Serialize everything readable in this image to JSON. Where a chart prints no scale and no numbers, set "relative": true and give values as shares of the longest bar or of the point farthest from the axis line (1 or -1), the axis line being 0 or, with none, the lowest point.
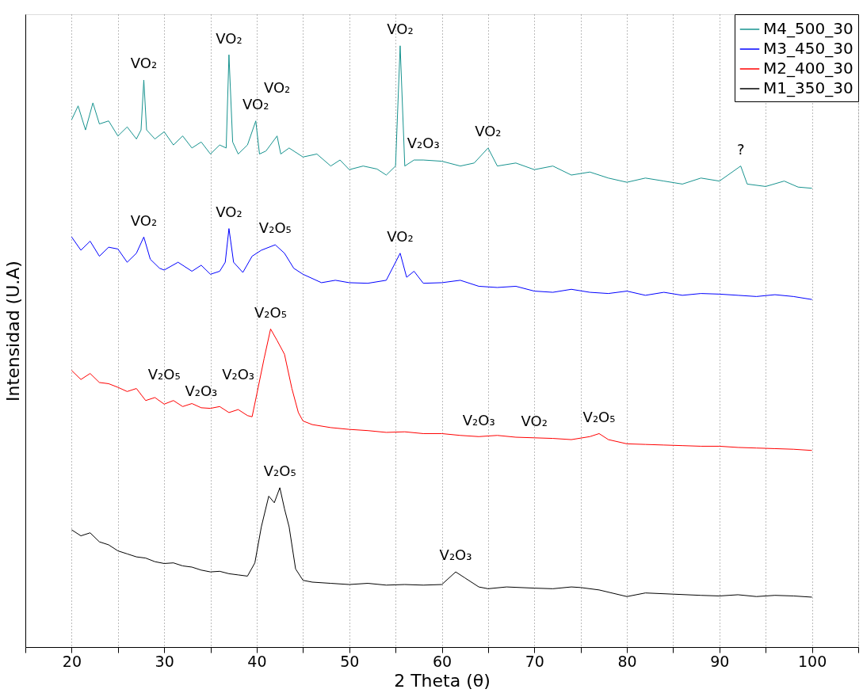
{
  "chart_data": {
    "type": "line",
    "relative": true,
    "xlabel": "2 Theta (θ)",
    "ylabel": "Intensidad (U.A)",
    "xlim": [
      15,
      105
    ],
    "xticks": [
      {
        "value": 15,
        "label": null
      },
      20,
      {
        "value": 25,
        "label": null
      },
      30,
      {
        "value": 35,
        "label": null
      },
      40,
      {
        "value": 45,
        "label": null
      },
      50,
      {
        "value": 55,
        "label": null
      },
      60,
      {
        "value": 65,
        "label": null
      },
      70,
      {
        "value": 75,
        "label": null
      },
      80,
      {
        "value": 85,
        "label": null
      },
      90,
      {
        "value": 95,
        "label": null
      },
      100,
      {
        "value": 105,
        "label": null
      }
    ],
    "tick_labels": "x",
    "grid": "x",
    "legend": "top right",
    "marker": "none",
    "line_style": "solid",
    "series": [
      {
        "name": "M4_500_30",
        "color": "#17938f",
        "x": [
          20,
          20.7,
          21.5,
          22.3,
          23,
          24,
          25,
          26,
          27,
          27.5,
          27.8,
          28.1,
          29,
          30,
          31,
          32,
          33,
          34,
          35,
          36,
          36.7,
          37.0,
          37.4,
          38,
          39,
          39.9,
          40.3,
          41,
          42.2,
          42.6,
          43.5,
          45,
          46.5,
          48,
          49,
          50,
          51.5,
          53,
          54,
          55,
          55.5,
          56,
          57,
          58,
          60,
          62,
          63.5,
          65,
          66,
          68,
          70,
          72,
          74,
          76,
          78,
          80,
          82,
          84,
          86,
          88,
          90,
          92.3,
          93,
          95,
          97,
          98.5,
          100
        ],
        "values": [
          0.877,
          0.9,
          0.86,
          0.905,
          0.87,
          0.875,
          0.85,
          0.865,
          0.845,
          0.86,
          0.943,
          0.86,
          0.845,
          0.857,
          0.835,
          0.85,
          0.83,
          0.84,
          0.82,
          0.835,
          0.83,
          0.985,
          0.84,
          0.82,
          0.835,
          0.875,
          0.82,
          0.825,
          0.85,
          0.82,
          0.83,
          0.815,
          0.82,
          0.8,
          0.81,
          0.794,
          0.8,
          0.795,
          0.785,
          0.8,
          1.0,
          0.8,
          0.81,
          0.81,
          0.808,
          0.8,
          0.805,
          0.83,
          0.8,
          0.805,
          0.794,
          0.8,
          0.785,
          0.79,
          0.78,
          0.773,
          0.78,
          0.775,
          0.77,
          0.78,
          0.775,
          0.8,
          0.77,
          0.766,
          0.775,
          0.765,
          0.763
        ]
      },
      {
        "name": "M3_450_30",
        "color": "#0000ff",
        "x": [
          20,
          21,
          22,
          23,
          24,
          25,
          26,
          27,
          27.8,
          28.5,
          29.5,
          30,
          31.5,
          33,
          34,
          35,
          36,
          36.6,
          37,
          37.5,
          38.5,
          39.5,
          40.5,
          42,
          43,
          44,
          45,
          47,
          48.5,
          50,
          52,
          54,
          55.5,
          56.2,
          57,
          58,
          60,
          62,
          64,
          66,
          68,
          70,
          72,
          74,
          76,
          78,
          80,
          82,
          84,
          86,
          88,
          90,
          92,
          94,
          96,
          98,
          100
        ],
        "values": [
          0.682,
          0.66,
          0.675,
          0.65,
          0.665,
          0.662,
          0.64,
          0.655,
          0.682,
          0.645,
          0.63,
          0.627,
          0.64,
          0.625,
          0.635,
          0.62,
          0.625,
          0.64,
          0.696,
          0.64,
          0.623,
          0.65,
          0.66,
          0.669,
          0.655,
          0.63,
          0.62,
          0.606,
          0.61,
          0.606,
          0.605,
          0.61,
          0.655,
          0.615,
          0.625,
          0.605,
          0.606,
          0.61,
          0.6,
          0.598,
          0.6,
          0.592,
          0.59,
          0.595,
          0.59,
          0.588,
          0.592,
          0.585,
          0.59,
          0.585,
          0.588,
          0.587,
          0.585,
          0.583,
          0.586,
          0.583,
          0.578
        ]
      },
      {
        "name": "M2_400_30",
        "color": "#ff0000",
        "x": [
          20,
          21,
          22,
          23,
          24,
          25,
          26,
          27,
          28,
          29,
          30,
          31,
          32,
          33,
          34,
          35,
          36,
          37,
          38,
          39,
          39.5,
          40,
          40.8,
          41.5,
          42.2,
          43,
          43.8,
          44.5,
          45,
          46,
          48,
          50,
          52,
          54,
          56,
          58,
          60,
          62,
          64,
          66,
          68,
          70,
          72,
          74,
          76,
          77,
          78,
          80,
          82,
          84,
          86,
          88,
          90,
          92,
          94,
          96,
          98,
          100
        ],
        "values": [
          0.46,
          0.445,
          0.455,
          0.44,
          0.438,
          0.432,
          0.425,
          0.43,
          0.41,
          0.415,
          0.404,
          0.41,
          0.4,
          0.405,
          0.398,
          0.397,
          0.4,
          0.39,
          0.395,
          0.385,
          0.383,
          0.42,
          0.48,
          0.529,
          0.51,
          0.487,
          0.43,
          0.39,
          0.376,
          0.37,
          0.365,
          0.362,
          0.36,
          0.357,
          0.358,
          0.355,
          0.355,
          0.352,
          0.35,
          0.352,
          0.349,
          0.348,
          0.347,
          0.345,
          0.35,
          0.355,
          0.345,
          0.338,
          0.337,
          0.336,
          0.335,
          0.334,
          0.334,
          0.332,
          0.331,
          0.33,
          0.329,
          0.327
        ]
      },
      {
        "name": "M1_350_30",
        "color": "#000000",
        "x": [
          20,
          21,
          22,
          23,
          24,
          25,
          26,
          27,
          28,
          29,
          30,
          31,
          32,
          33,
          34,
          35,
          36,
          37,
          38,
          39,
          39.8,
          40.5,
          41.3,
          41.9,
          42.5,
          43,
          43.5,
          44.2,
          45,
          46,
          48,
          50,
          52,
          54,
          56,
          58,
          60,
          61.5,
          62.5,
          64,
          65,
          67,
          70,
          72,
          74,
          75,
          77,
          80,
          82,
          85,
          88,
          90,
          92,
          94,
          96,
          98,
          100
        ],
        "values": [
          0.195,
          0.185,
          0.19,
          0.175,
          0.17,
          0.16,
          0.155,
          0.15,
          0.148,
          0.142,
          0.139,
          0.14,
          0.135,
          0.133,
          0.128,
          0.125,
          0.126,
          0.122,
          0.12,
          0.118,
          0.14,
          0.2,
          0.251,
          0.24,
          0.265,
          0.23,
          0.2,
          0.13,
          0.111,
          0.108,
          0.106,
          0.104,
          0.106,
          0.103,
          0.104,
          0.103,
          0.104,
          0.125,
          0.115,
          0.1,
          0.097,
          0.1,
          0.098,
          0.097,
          0.1,
          0.099,
          0.095,
          0.084,
          0.09,
          0.088,
          0.086,
          0.085,
          0.087,
          0.084,
          0.086,
          0.085,
          0.083
        ]
      }
    ],
    "annotations": [
      {
        "text": "VO₂",
        "x": 27.8,
        "y": 0.943
      },
      {
        "text": "VO₂",
        "x": 37.0,
        "y": 0.985
      },
      {
        "text": "VO₂",
        "x": 39.9,
        "y": 0.875
      },
      {
        "text": "VO₂",
        "x": 42.2,
        "y": 0.85
      },
      {
        "text": "VO₂",
        "x": 55.5,
        "y": 1.0
      },
      {
        "text": "V₂O₃",
        "x": 58,
        "y": 0.81
      },
      {
        "text": "VO₂",
        "x": 65,
        "y": 0.83
      },
      {
        "text": "?",
        "x": 92.3,
        "y": 0.8
      },
      {
        "text": "VO₂",
        "x": 27.8,
        "y": 0.682
      },
      {
        "text": "VO₂",
        "x": 37,
        "y": 0.696
      },
      {
        "text": "V₂O₅",
        "x": 42,
        "y": 0.669
      },
      {
        "text": "VO₂",
        "x": 55.5,
        "y": 0.655
      },
      {
        "text": "V₂O₅",
        "x": 41.5,
        "y": 0.529
      },
      {
        "text": "V₂O₃",
        "x": 34,
        "y": 0.398
      },
      {
        "text": "V₂O₅",
        "x": 30,
        "y": 0.404
      },
      {
        "text": "V₂O₃",
        "x": 38,
        "y": 0.395
      },
      {
        "text": "V₂O₃",
        "x": 64,
        "y": 0.35
      },
      {
        "text": "VO₂",
        "x": 70,
        "y": 0.348
      },
      {
        "text": "V₂O₅",
        "x": 77,
        "y": 0.355
      },
      {
        "text": "V₂O₅",
        "x": 42.5,
        "y": 0.265
      },
      {
        "text": "V₂O₃",
        "x": 61.5,
        "y": 0.125
      }
    ]
  }
}
